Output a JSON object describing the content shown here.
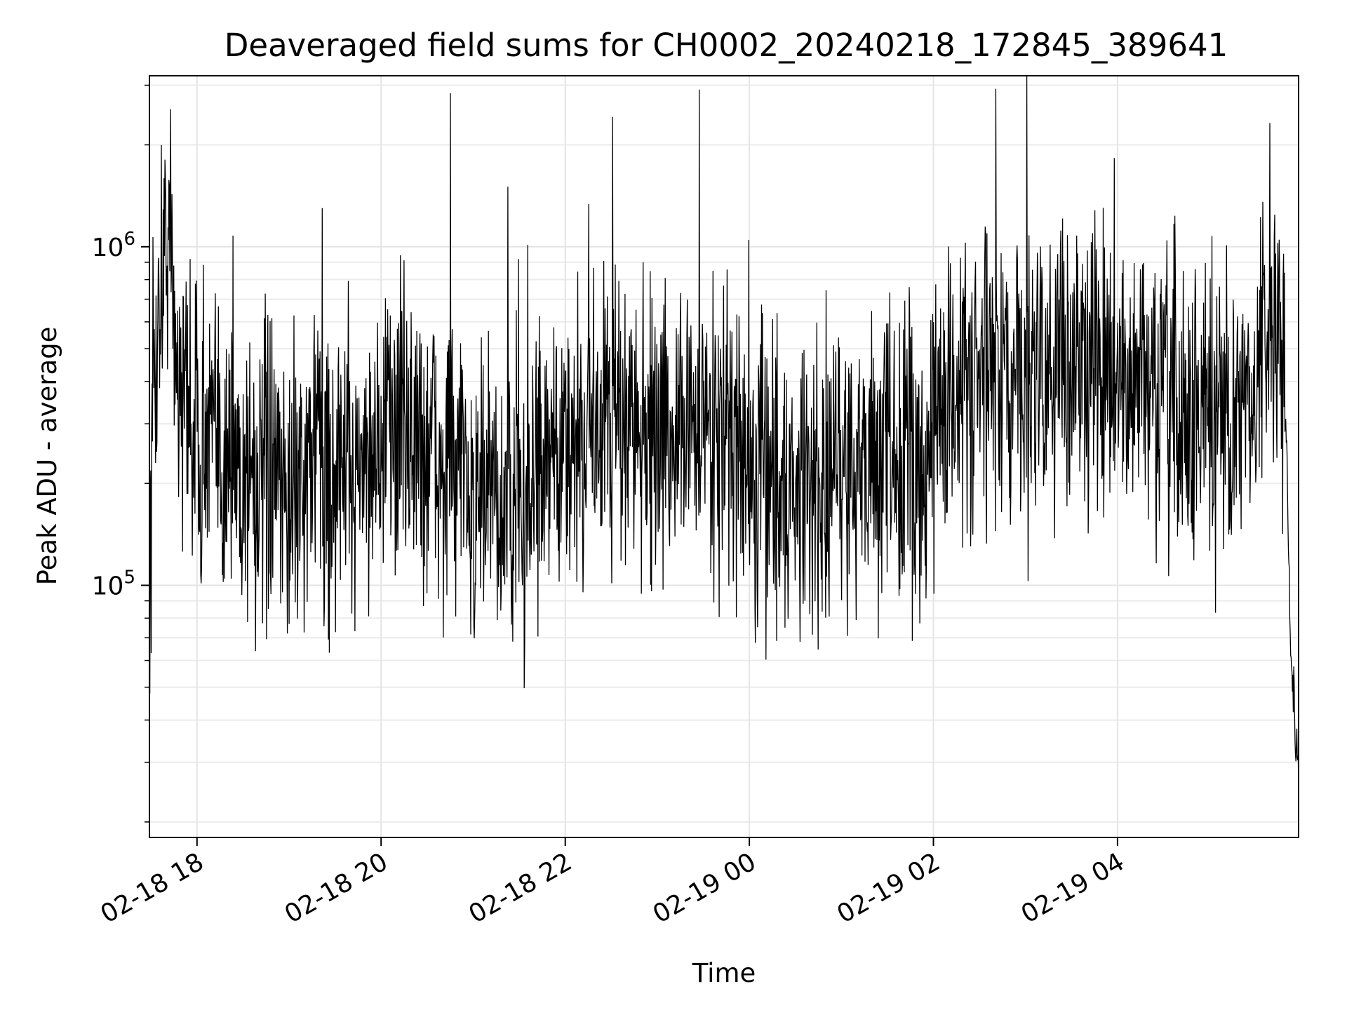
{
  "chart_data": {
    "type": "line",
    "title": "Deaveraged field sums for CH0002_20240218_172845_389641",
    "xlabel": "Time",
    "ylabel": "Peak ADU - average",
    "x_axis": "time",
    "y_scale": "log",
    "grid": true,
    "legend": "none",
    "xlim": [
      "2024-02-18 17:29",
      "2024-02-19 05:58"
    ],
    "ylim": [
      18000,
      3200000
    ],
    "x_ticks": [
      {
        "value": "2024-02-18 18:00",
        "label": "02-18 18"
      },
      {
        "value": "2024-02-18 20:00",
        "label": "02-18 20"
      },
      {
        "value": "2024-02-18 22:00",
        "label": "02-18 22"
      },
      {
        "value": "2024-02-19 00:00",
        "label": "02-19 00"
      },
      {
        "value": "2024-02-19 02:00",
        "label": "02-19 02"
      },
      {
        "value": "2024-02-19 04:00",
        "label": "02-19 04"
      }
    ],
    "y_ticks": [
      {
        "value": 100000,
        "base": "10",
        "exp": "5"
      },
      {
        "value": 1000000,
        "base": "10",
        "exp": "6"
      }
    ],
    "series": [
      {
        "color": "#000000",
        "x": [
          "2024-02-18 17:29",
          "2024-02-18 17:32",
          "2024-02-18 17:36",
          "2024-02-18 17:40",
          "2024-02-18 17:44",
          "2024-02-18 17:48",
          "2024-02-18 18:00",
          "2024-02-18 18:15",
          "2024-02-18 18:30",
          "2024-02-18 18:45",
          "2024-02-18 19:00",
          "2024-02-18 19:15",
          "2024-02-18 19:30",
          "2024-02-18 19:45",
          "2024-02-18 20:00",
          "2024-02-18 20:15",
          "2024-02-18 20:30",
          "2024-02-18 20:45",
          "2024-02-18 21:00",
          "2024-02-18 21:15",
          "2024-02-18 21:30",
          "2024-02-18 21:45",
          "2024-02-18 22:00",
          "2024-02-18 22:15",
          "2024-02-18 22:30",
          "2024-02-18 22:45",
          "2024-02-18 23:00",
          "2024-02-18 23:15",
          "2024-02-18 23:30",
          "2024-02-18 23:45",
          "2024-02-19 00:00",
          "2024-02-19 00:15",
          "2024-02-19 00:30",
          "2024-02-19 00:45",
          "2024-02-19 01:00",
          "2024-02-19 01:15",
          "2024-02-19 01:30",
          "2024-02-19 01:45",
          "2024-02-19 02:00",
          "2024-02-19 02:15",
          "2024-02-19 02:30",
          "2024-02-19 02:45",
          "2024-02-19 03:00",
          "2024-02-19 03:15",
          "2024-02-19 03:30",
          "2024-02-19 03:45",
          "2024-02-19 04:00",
          "2024-02-19 04:15",
          "2024-02-19 04:30",
          "2024-02-19 04:45",
          "2024-02-19 05:00",
          "2024-02-19 05:15",
          "2024-02-19 05:30",
          "2024-02-19 05:40",
          "2024-02-19 05:45",
          "2024-02-19 05:50",
          "2024-02-19 05:54",
          "2024-02-19 05:58"
        ],
        "y": [
          80000,
          400000,
          700000,
          1200000,
          800000,
          400000,
          300000,
          250000,
          220000,
          200000,
          180000,
          230000,
          210000,
          230000,
          280000,
          300000,
          240000,
          220000,
          180000,
          170000,
          165000,
          200000,
          250000,
          300000,
          320000,
          300000,
          270000,
          310000,
          300000,
          280000,
          210000,
          200000,
          190000,
          210000,
          220000,
          230000,
          240000,
          220000,
          300000,
          420000,
          400000,
          380000,
          400000,
          450000,
          500000,
          430000,
          380000,
          400000,
          350000,
          320000,
          300000,
          330000,
          350000,
          600000,
          700000,
          250000,
          50000,
          30000
        ]
      }
    ]
  }
}
